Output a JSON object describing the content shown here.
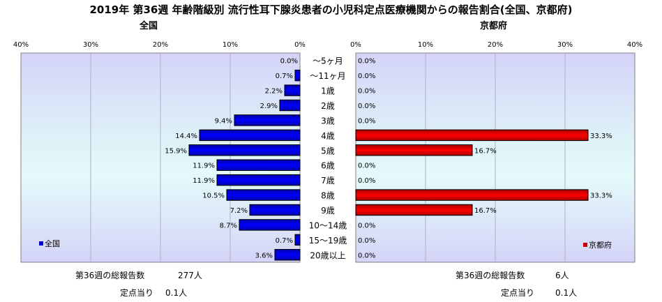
{
  "title": "2019年 第36週 年齢階級別 流行性耳下腺炎患者の小児科定点医療機関からの報告割合(全国、京都府)",
  "colors": {
    "national": "#0000cc",
    "kyoto": "#cc0000",
    "grid": "#b0b0c8"
  },
  "chart_data": [
    {
      "type": "bar",
      "orientation": "horizontal",
      "direction": "right-to-left",
      "heading": "全国",
      "categories": [
        "～5ヶ月",
        "～11ヶ月",
        "1歳",
        "2歳",
        "3歳",
        "4歳",
        "5歳",
        "6歳",
        "7歳",
        "8歳",
        "9歳",
        "10～14歳",
        "15～19歳",
        "20歳以上"
      ],
      "series": [
        {
          "name": "全国",
          "values": [
            0.0,
            0.7,
            2.2,
            2.9,
            9.4,
            14.4,
            15.9,
            11.9,
            11.9,
            10.5,
            7.2,
            8.7,
            0.7,
            3.6
          ]
        }
      ],
      "data_labels": [
        "0.0%",
        "0.7%",
        "2.2%",
        "2.9%",
        "9.4%",
        "14.4%",
        "15.9%",
        "11.9%",
        "11.9%",
        "10.5%",
        "7.2%",
        "8.7%",
        "0.7%",
        "3.6%"
      ],
      "xlim": [
        0,
        40
      ],
      "ticks": [
        "40%",
        "30%",
        "20%",
        "10%",
        "0%"
      ],
      "legend": "bottom-left",
      "grid": true
    },
    {
      "type": "bar",
      "orientation": "horizontal",
      "direction": "left-to-right",
      "heading": "京都府",
      "categories": [
        "～5ヶ月",
        "～11ヶ月",
        "1歳",
        "2歳",
        "3歳",
        "4歳",
        "5歳",
        "6歳",
        "7歳",
        "8歳",
        "9歳",
        "10～14歳",
        "15～19歳",
        "20歳以上"
      ],
      "series": [
        {
          "name": "京都府",
          "values": [
            0.0,
            0.0,
            0.0,
            0.0,
            0.0,
            33.3,
            16.7,
            0.0,
            0.0,
            33.3,
            16.7,
            0.0,
            0.0,
            0.0
          ]
        }
      ],
      "data_labels": [
        "0.0%",
        "0.0%",
        "0.0%",
        "0.0%",
        "0.0%",
        "33.3%",
        "16.7%",
        "0.0%",
        "0.0%",
        "33.3%",
        "16.7%",
        "0.0%",
        "0.0%",
        "0.0%"
      ],
      "xlim": [
        0,
        40
      ],
      "ticks": [
        "0%",
        "10%",
        "20%",
        "30%",
        "40%"
      ],
      "legend": "bottom-right",
      "grid": true
    }
  ],
  "footer": {
    "left": {
      "total_label": "第36週の総報告数",
      "total_value": "277人",
      "per_label": "定点当り",
      "per_value": "0.1人"
    },
    "right": {
      "total_label": "第36週の総報告数",
      "total_value": "6人",
      "per_label": "定点当り",
      "per_value": "0.1人"
    }
  }
}
